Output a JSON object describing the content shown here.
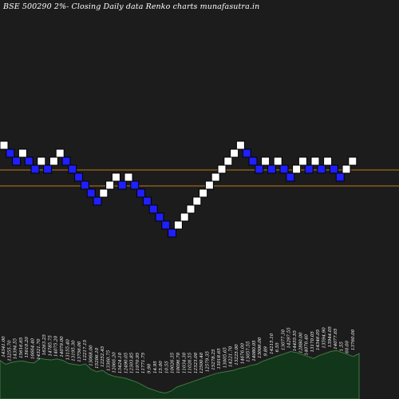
{
  "chart_data": {
    "type": "renko",
    "title": "BSE 500290  2%-  Closing Daily data  Renko  charts munafasutra.in",
    "brick_percent": 2,
    "brick_step": 1,
    "bricks": [
      {
        "level": 11,
        "color": "white"
      },
      {
        "level": 10,
        "color": "blue"
      },
      {
        "level": 9,
        "color": "blue"
      },
      {
        "level": 10,
        "color": "white"
      },
      {
        "level": 9,
        "color": "blue"
      },
      {
        "level": 8,
        "color": "blue"
      },
      {
        "level": 9,
        "color": "white"
      },
      {
        "level": 8,
        "color": "blue"
      },
      {
        "level": 9,
        "color": "white"
      },
      {
        "level": 10,
        "color": "white"
      },
      {
        "level": 9,
        "color": "blue"
      },
      {
        "level": 8,
        "color": "blue"
      },
      {
        "level": 7,
        "color": "blue"
      },
      {
        "level": 6,
        "color": "blue"
      },
      {
        "level": 5,
        "color": "blue"
      },
      {
        "level": 4,
        "color": "blue"
      },
      {
        "level": 5,
        "color": "white"
      },
      {
        "level": 6,
        "color": "white"
      },
      {
        "level": 7,
        "color": "white"
      },
      {
        "level": 6,
        "color": "blue"
      },
      {
        "level": 7,
        "color": "white"
      },
      {
        "level": 6,
        "color": "blue"
      },
      {
        "level": 5,
        "color": "blue"
      },
      {
        "level": 4,
        "color": "blue"
      },
      {
        "level": 3,
        "color": "blue"
      },
      {
        "level": 2,
        "color": "blue"
      },
      {
        "level": 1,
        "color": "blue"
      },
      {
        "level": 0,
        "color": "blue"
      },
      {
        "level": 1,
        "color": "white"
      },
      {
        "level": 2,
        "color": "white"
      },
      {
        "level": 3,
        "color": "white"
      },
      {
        "level": 4,
        "color": "white"
      },
      {
        "level": 5,
        "color": "white"
      },
      {
        "level": 6,
        "color": "white"
      },
      {
        "level": 7,
        "color": "white"
      },
      {
        "level": 8,
        "color": "white"
      },
      {
        "level": 9,
        "color": "white"
      },
      {
        "level": 10,
        "color": "white"
      },
      {
        "level": 11,
        "color": "white"
      },
      {
        "level": 10,
        "color": "blue"
      },
      {
        "level": 9,
        "color": "blue"
      },
      {
        "level": 8,
        "color": "blue"
      },
      {
        "level": 9,
        "color": "white"
      },
      {
        "level": 8,
        "color": "blue"
      },
      {
        "level": 9,
        "color": "white"
      },
      {
        "level": 8,
        "color": "blue"
      },
      {
        "level": 7,
        "color": "blue"
      },
      {
        "level": 8,
        "color": "white"
      },
      {
        "level": 9,
        "color": "white"
      },
      {
        "level": 8,
        "color": "blue"
      },
      {
        "level": 9,
        "color": "white"
      },
      {
        "level": 8,
        "color": "blue"
      },
      {
        "level": 9,
        "color": "white"
      },
      {
        "level": 8,
        "color": "blue"
      },
      {
        "level": 7,
        "color": "blue"
      },
      {
        "level": 8,
        "color": "white"
      },
      {
        "level": 9,
        "color": "white"
      }
    ],
    "reference_lines": [
      {
        "level": 7.8,
        "color": "#c07818"
      },
      {
        "level": 5.8,
        "color": "#c07818"
      }
    ],
    "volume_labels": [
      "14341.00",
      "13255.70",
      "14394.55",
      "15616.65",
      "15610.20",
      "16664.40",
      "14321.70",
      "16263.25",
      "14785.75",
      "14075.20",
      "14079.00",
      "13155.40",
      "13195.30",
      "13756.00",
      "12217.15",
      "13068.00",
      "15206.10",
      "12252.45",
      "13360.75",
      "12066.20",
      "13424.10",
      "12490.05",
      "12303.85",
      "11970.95",
      "11771.75",
      "9.90",
      "14.95",
      "15.00",
      "10.55",
      "10026.35",
      "10096.70",
      "11034.30",
      "11026.55",
      "12323.00",
      "12500.40",
      "12579.35",
      "15278.25",
      "13018.65",
      "13005.65",
      "14221.70",
      "13225.00",
      "14676.00",
      "13057.55",
      "14080.05",
      "13006.00",
      "9.89",
      "14215.10",
      "6.55",
      "13077.30",
      "14297.55",
      "14455.55",
      "12880.00",
      "14070.40",
      "13170.05",
      "14346.05",
      "13594.90",
      "13944.05",
      "14077.65",
      "1.55",
      "60.00",
      "13760.00"
    ],
    "volume_levels": [
      0.78,
      0.7,
      0.74,
      0.76,
      0.77,
      0.74,
      0.73,
      0.82,
      0.8,
      0.79,
      0.81,
      0.78,
      0.72,
      0.7,
      0.68,
      0.71,
      0.6,
      0.55,
      0.58,
      0.5,
      0.46,
      0.44,
      0.42,
      0.38,
      0.34,
      0.28,
      0.22,
      0.18,
      0.14,
      0.12,
      0.16,
      0.24,
      0.28,
      0.32,
      0.36,
      0.4,
      0.44,
      0.48,
      0.52,
      0.54,
      0.56,
      0.58,
      0.62,
      0.64,
      0.68,
      0.7,
      0.76,
      0.8,
      0.84,
      0.88,
      0.92,
      0.96,
      0.94,
      0.9,
      0.86,
      0.82,
      0.88,
      0.92,
      0.96,
      0.98,
      0.94,
      0.9,
      0.86,
      0.92
    ],
    "colors": {
      "background": "#1c1c1c",
      "up_brick": "#ffffff",
      "down_brick": "#1f1fff",
      "brick_border": "#000000",
      "volume_fill": "#12361a",
      "volume_stroke": "#3d7a42",
      "label_text": "#ffffff",
      "title_text": "#ffffff"
    }
  }
}
